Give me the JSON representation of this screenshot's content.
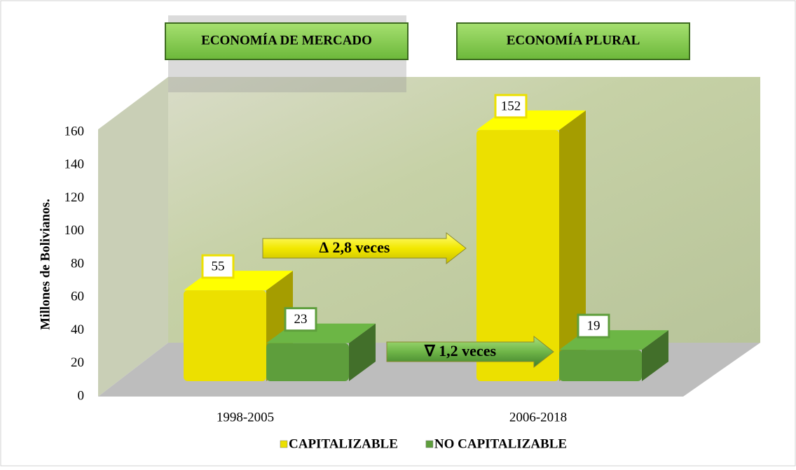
{
  "chart_data": {
    "type": "bar",
    "y_label": "Millones de Bolivianos.",
    "categories": [
      "1998-2005",
      "2006-2018"
    ],
    "series": [
      {
        "name": "CAPITALIZABLE",
        "color": "#ece000",
        "values": [
          55,
          152
        ]
      },
      {
        "name": "NO CAPITALIZABLE",
        "color": "#5e9e3c",
        "values": [
          23,
          19
        ]
      }
    ],
    "ylim": [
      0,
      160
    ],
    "yticks": [
      0,
      20,
      40,
      60,
      80,
      100,
      120,
      140,
      160
    ],
    "legend": "bottom",
    "annotations": [
      "ECONOMÍA DE MERCADO",
      "ECONOMÍA PLURAL",
      "∆ 2,8  veces",
      "∇ 1,2 veces"
    ]
  }
}
